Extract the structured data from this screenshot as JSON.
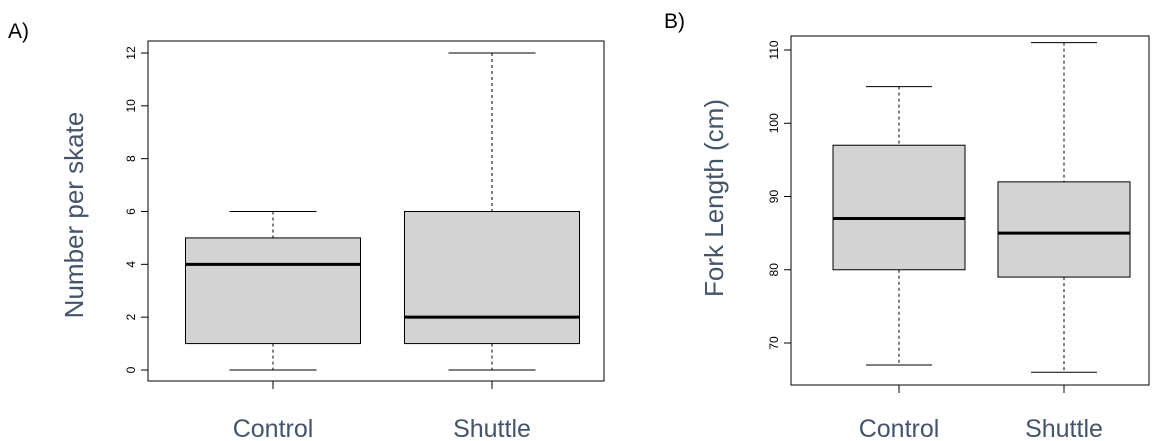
{
  "chart_data": [
    {
      "type": "box",
      "panel_label": "A)",
      "title": "",
      "xlabel": "",
      "ylabel": "Number per skate",
      "ylim": [
        -0.5,
        12.5
      ],
      "yticks": [
        0,
        2,
        4,
        6,
        8,
        10,
        12
      ],
      "categories": [
        "Control",
        "Shuttle"
      ],
      "boxes": [
        {
          "category": "Control",
          "min": 0,
          "q1": 1,
          "median": 4,
          "q3": 5,
          "max": 6
        },
        {
          "category": "Shuttle",
          "min": 0,
          "q1": 1,
          "median": 2,
          "q3": 6,
          "max": 12
        }
      ],
      "box_color": "#d3d3d3",
      "label_color": "#44546a",
      "grid": false
    },
    {
      "type": "box",
      "panel_label": "B)",
      "title": "",
      "xlabel": "",
      "ylabel": "Fork Length (cm)",
      "ylim": [
        64,
        112
      ],
      "yticks": [
        70,
        80,
        90,
        100,
        110
      ],
      "categories": [
        "Control",
        "Shuttle"
      ],
      "boxes": [
        {
          "category": "Control",
          "min": 67,
          "q1": 80,
          "median": 87,
          "q3": 97,
          "max": 105
        },
        {
          "category": "Shuttle",
          "min": 66,
          "q1": 79,
          "median": 85,
          "q3": 92,
          "max": 111
        }
      ],
      "box_color": "#d3d3d3",
      "label_color": "#44546a",
      "grid": false
    }
  ]
}
